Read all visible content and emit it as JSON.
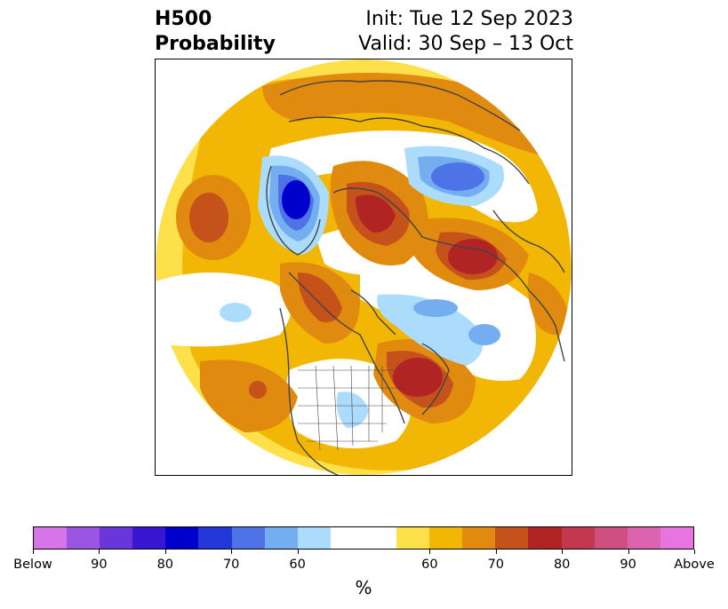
{
  "title": {
    "left_line1": "H500",
    "left_line2": "Probability",
    "right_line1": "Init: Tue 12 Sep 2023",
    "right_line2": "Valid: 30 Sep – 13 Oct"
  },
  "colorbar": {
    "unit": "%",
    "colors": [
      "#d774e8",
      "#9a55e2",
      "#6a36da",
      "#3817d2",
      "#0000cc",
      "#2437d9",
      "#4d73e6",
      "#74aef0",
      "#abdcfb",
      "#ffffff",
      "#ffffff",
      "#fde04a",
      "#f2b705",
      "#e08a0f",
      "#c4521a",
      "#b02424",
      "#c3384f",
      "#d04f81",
      "#dc63ad",
      "#e874e0"
    ],
    "tick_labels": [
      "Below",
      "90",
      "80",
      "70",
      "60",
      "60",
      "70",
      "80",
      "90",
      "Above"
    ]
  },
  "map": {
    "palette": {
      "y1": "#fde04a",
      "y2": "#f2b705",
      "o1": "#e08a0f",
      "o2": "#c4521a",
      "r1": "#b02424",
      "r2": "#c3384f",
      "b1": "#abdcfb",
      "b2": "#74aef0",
      "b3": "#4d73e6",
      "b4": "#2437d9",
      "b5": "#0000cc",
      "land": "#444444"
    }
  }
}
